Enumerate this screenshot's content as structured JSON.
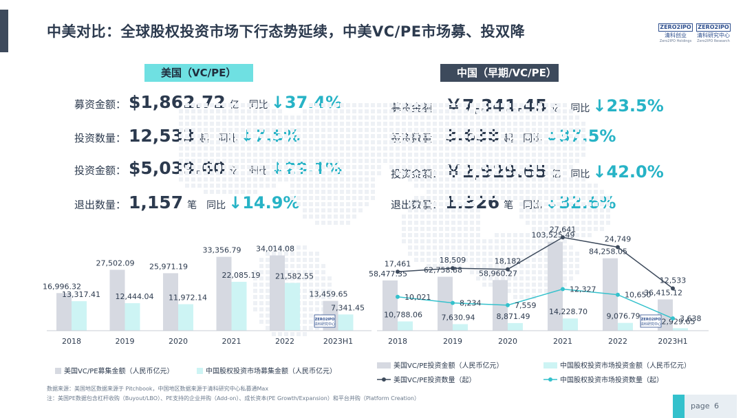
{
  "title": "中美对比：全球股权投资市场下行态势延续，中美VC/PE市场募、投双降",
  "logo": {
    "top": "ZERO2IPO",
    "mid_left": "清科创业",
    "bot_left": "Zero2IPO Holdings",
    "mid_right": "清科研究中心",
    "bot_right": "Zero2IPO Research"
  },
  "us": {
    "tag": "美国（VC/PE）",
    "stats": [
      {
        "label": "募资金额：",
        "value": "$1,862.72",
        "unit": "亿",
        "yoy_label": "同比",
        "pct": "37.4%"
      },
      {
        "label": "投资数量：",
        "value": "12,533",
        "unit": "起",
        "yoy_label": "同比",
        "pct": "7.5%"
      },
      {
        "label": "投资金额：",
        "value": "$5,039.60",
        "unit": "亿",
        "yoy_label": "同比",
        "pct": "29.1%"
      },
      {
        "label": "退出数量：",
        "value": "1,157",
        "unit": "笔",
        "yoy_label": "同比",
        "pct": "14.9%"
      }
    ]
  },
  "cn": {
    "tag": "中国（早期/VC/PE）",
    "stats": [
      {
        "label": "募资金额：",
        "value": "￥7,341.45",
        "unit": "亿",
        "yoy_label": "同比",
        "pct": "23.5%"
      },
      {
        "label": "投资数量：",
        "value": "3,638",
        "unit": "起",
        "yoy_label": "同比",
        "pct": "37.5%"
      },
      {
        "label": "投资金额：",
        "value": "￥2,929.65",
        "unit": "亿",
        "yoy_label": "同比",
        "pct": "42.0%"
      },
      {
        "label": "退出数量：",
        "value": "1,326",
        "unit": "笔",
        "yoy_label": "同比",
        "pct": "32.6%"
      }
    ]
  },
  "arrow_glyph": "↓",
  "colors": {
    "us_bar": "#d6d9e1",
    "cn_bar": "#cdf4f4",
    "us_line": "#3d4a5c",
    "cn_line": "#34c1cc",
    "accent": "#27b3c6"
  },
  "chart_data": [
    {
      "type": "bar",
      "categories": [
        "2018",
        "2019",
        "2020",
        "2021",
        "2022",
        "2023H1"
      ],
      "series": [
        {
          "name": "美国VC/PE募集金额（人民币亿元）",
          "values": [
            16996.32,
            27502.09,
            25971.19,
            33356.79,
            34014.08,
            13459.65
          ],
          "labels": [
            "16,996.32",
            "27,502.09",
            "25,971.19",
            "33,356.79",
            "34,014.08",
            "13,459.65"
          ]
        },
        {
          "name": "中国股权投资市场募集金额（人民币亿元）",
          "values": [
            13317.41,
            12444.04,
            11972.14,
            22085.19,
            21582.55,
            7341.45
          ],
          "labels": [
            "13,317.41",
            "12,444.04",
            "11,972.14",
            "22,085.19",
            "21,582.55",
            "7,341.45"
          ]
        }
      ],
      "legend_position": "bottom"
    },
    {
      "type": "bar",
      "categories": [
        "2018",
        "2019",
        "2020",
        "2021",
        "2022",
        "2023H1"
      ],
      "series": [
        {
          "name": "美国VC/PE投资金额（人民币亿元）",
          "values": [
            58477.35,
            62758.88,
            58960.27,
            103525.49,
            84258.05,
            36415.12
          ],
          "labels": [
            "58,477.35",
            "62,758.88",
            "58,960.27",
            "103,525.49",
            "84,258.05",
            "36,415.12"
          ]
        },
        {
          "name": "中国股权投资市场投资金额（人民币亿元）",
          "values": [
            10788.06,
            7630.94,
            8871.49,
            14228.7,
            9076.79,
            2929.65
          ],
          "labels": [
            "10,788.06",
            "7,630.94",
            "8,871.49",
            "14,228.70",
            "9,076.79",
            "2,929.65"
          ]
        }
      ],
      "lines": [
        {
          "name": "美国VC/PE投资数量（起）",
          "values": [
            17461,
            18509,
            18182,
            27641,
            24749,
            12533
          ],
          "labels": [
            "17,461",
            "18,509",
            "18,182",
            "27,641",
            "24,749",
            "12,533"
          ]
        },
        {
          "name": "中国股权投资市场投资数量（起）",
          "values": [
            10021,
            8234,
            7559,
            12327,
            10650,
            3638
          ],
          "labels": [
            "10,021",
            "8,234",
            "7,559",
            "12,327",
            "10,650",
            "3,638"
          ]
        }
      ],
      "legend_position": "bottom"
    }
  ],
  "footnotes": [
    "数据来源：美国地区数据来源于 Pitchbook，中国地区数据来源于清科研究中心私募通Max",
    "注：美国PE数据包含杠杆收购（Buyout/LBO）、PE支持的企业并购（Add-on）、成长资本(PE Growth/Expansion）和平台并购（Platform Creation）"
  ],
  "page": {
    "label": "page",
    "number": "6"
  }
}
